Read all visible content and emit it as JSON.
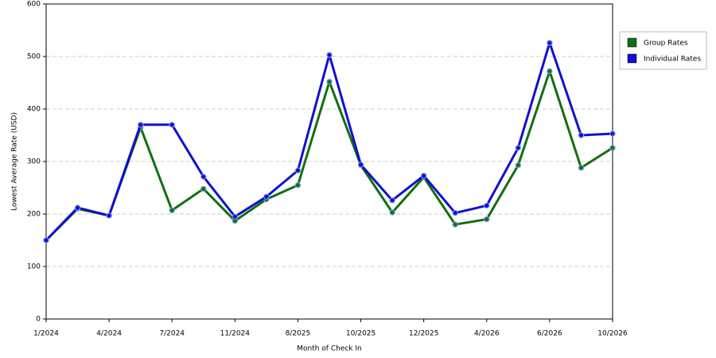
{
  "chart_data": {
    "type": "line",
    "x_label": "Month of Check In",
    "y_label": "Lowest Average Rate (USD)",
    "categories": [
      "1/2024",
      null,
      "4/2024",
      null,
      "7/2024",
      null,
      "11/2024",
      null,
      "8/2025",
      null,
      "10/2025",
      null,
      "12/2025",
      null,
      "4/2026",
      null,
      "6/2026",
      null,
      "10/2026"
    ],
    "series": [
      {
        "name": "Group Rates",
        "color": "#107010",
        "values": [
          150,
          210,
          197,
          365,
          207,
          248,
          187,
          228,
          255,
          452,
          293,
          203,
          270,
          180,
          190,
          293,
          472,
          288,
          326
        ]
      },
      {
        "name": "Individual Rates",
        "color": "#1010d0",
        "values": [
          150,
          212,
          197,
          370,
          370,
          271,
          195,
          233,
          283,
          503,
          294,
          226,
          273,
          202,
          216,
          326,
          526,
          350,
          353
        ]
      }
    ],
    "ylim": [
      0,
      600
    ],
    "yticks": [
      0,
      100,
      200,
      300,
      400,
      500,
      600
    ],
    "grid": true,
    "legend": "right"
  }
}
